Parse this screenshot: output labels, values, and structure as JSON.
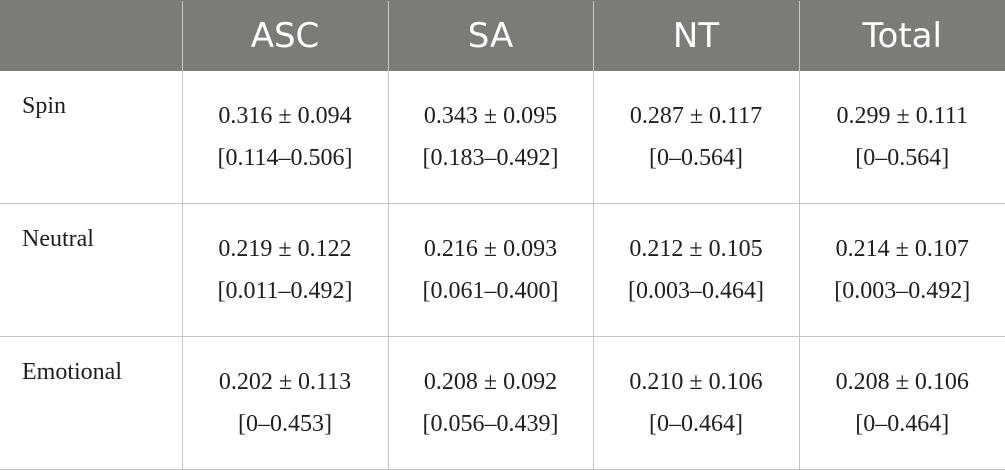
{
  "table": {
    "headers": [
      "",
      "ASC",
      "SA",
      "NT",
      "Total"
    ],
    "rows": [
      {
        "label": "Spin",
        "cells": [
          {
            "mean_sd": "0.316 ± 0.094",
            "range": "[0.114–0.506]"
          },
          {
            "mean_sd": "0.343 ± 0.095",
            "range": "[0.183–0.492]"
          },
          {
            "mean_sd": "0.287 ± 0.117",
            "range": "[0–0.564]"
          },
          {
            "mean_sd": "0.299 ± 0.111",
            "range": "[0–0.564]"
          }
        ]
      },
      {
        "label": "Neutral",
        "cells": [
          {
            "mean_sd": "0.219 ± 0.122",
            "range": "[0.011–0.492]"
          },
          {
            "mean_sd": "0.216 ± 0.093",
            "range": "[0.061–0.400]"
          },
          {
            "mean_sd": "0.212 ± 0.105",
            "range": "[0.003–0.464]"
          },
          {
            "mean_sd": "0.214 ± 0.107",
            "range": "[0.003–0.492]"
          }
        ]
      },
      {
        "label": "Emotional",
        "cells": [
          {
            "mean_sd": "0.202 ± 0.113",
            "range": "[0–0.453]"
          },
          {
            "mean_sd": "0.208 ± 0.092",
            "range": "[0.056–0.439]"
          },
          {
            "mean_sd": "0.210 ± 0.106",
            "range": "[0–0.464]"
          },
          {
            "mean_sd": "0.208 ± 0.106",
            "range": "[0–0.464]"
          }
        ]
      }
    ],
    "colors": {
      "header_bg": "#7b7b79",
      "header_text": "#ffffff",
      "grid": "#c4c4c4"
    }
  }
}
